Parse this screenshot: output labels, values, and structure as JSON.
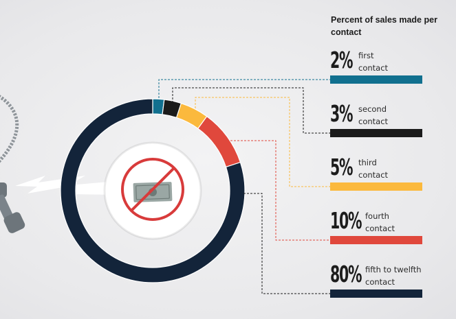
{
  "chart_data": {
    "type": "pie",
    "title": "Percent of sales made per contact",
    "series": [
      {
        "label": "2%",
        "value": 2,
        "desc": "first contact",
        "desc_lines": [
          "first",
          "contact"
        ],
        "color": "#11708f"
      },
      {
        "label": "3%",
        "value": 3,
        "desc": "second contact",
        "desc_lines": [
          "second",
          "contact"
        ],
        "color": "#1b1b1b"
      },
      {
        "label": "5%",
        "value": 5,
        "desc": "third contact",
        "desc_lines": [
          "third",
          "contact"
        ],
        "color": "#fbb93d"
      },
      {
        "label": "10%",
        "value": 10,
        "desc": "fourth contact",
        "desc_lines": [
          "fourth",
          "contact"
        ],
        "color": "#e0483c"
      },
      {
        "label": "80%",
        "value": 80,
        "desc": "fifth to twelfth contact",
        "desc_lines": [
          "fifth to twelfth",
          "contact"
        ],
        "color": "#13243a"
      }
    ]
  },
  "icons": {
    "phone": "telephone-receiver-icon",
    "bolt": "lightning-bolt-icon",
    "no_money": "no-money-icon"
  }
}
